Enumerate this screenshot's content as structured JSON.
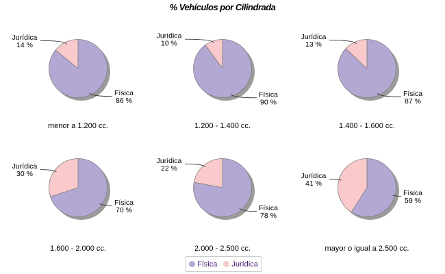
{
  "title": "% Vehículos por Cilindrada",
  "chart_data": {
    "type": "pie",
    "title": "% Vehículos por Cilindrada",
    "series_names": [
      "Física",
      "Jurídica"
    ],
    "label_value_suffix": " %",
    "legend_position": "bottom",
    "colors": {
      "fisica": "#b3a7d4",
      "juridica": "#f9c9cb",
      "outline": "#808080",
      "shadow": "#9b9b9b",
      "link_line": "#333333",
      "label_text": "#000000",
      "legend_text": "#4b2178",
      "legend_border": "#cccccc"
    },
    "pies": [
      {
        "caption": "menor a 1.200 cc.",
        "values": {
          "Física": 86,
          "Jurídica": 14
        }
      },
      {
        "caption": "1.200 - 1.400 cc.",
        "values": {
          "Física": 90,
          "Jurídica": 10
        }
      },
      {
        "caption": "1.400 - 1.600 cc.",
        "values": {
          "Física": 87,
          "Jurídica": 13
        }
      },
      {
        "caption": "1.600 - 2.000 cc.",
        "values": {
          "Física": 70,
          "Jurídica": 30
        }
      },
      {
        "caption": "2.000 - 2.500 cc.",
        "values": {
          "Física": 78,
          "Jurídica": 22
        }
      },
      {
        "caption": "mayor o igual a 2.500 cc.",
        "values": {
          "Física": 59,
          "Jurídica": 41
        }
      }
    ]
  },
  "legend": {
    "items": [
      {
        "label": "Física"
      },
      {
        "label": "Jurídica"
      }
    ]
  }
}
